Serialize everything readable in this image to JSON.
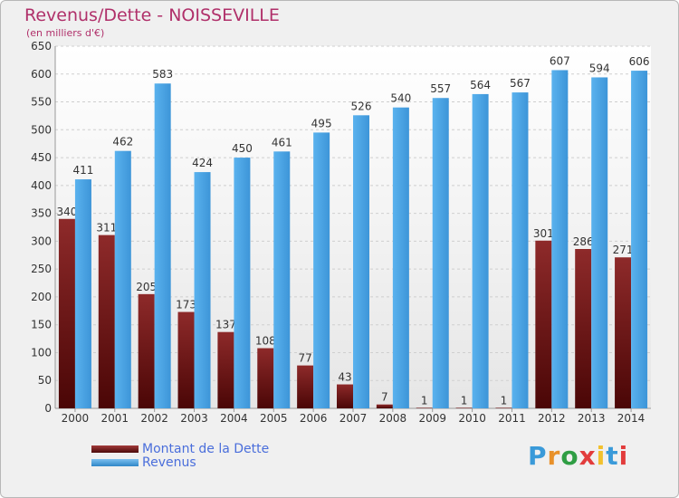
{
  "header": {
    "title": "Revenus/Dette - NOISSEVILLE",
    "subtitle": "(en milliers d'€)"
  },
  "logo": {
    "text": "Proxiti",
    "letters": [
      "P",
      "r",
      "o",
      "x",
      "i",
      "t",
      "i"
    ],
    "colors": [
      "#3a9ad9",
      "#e8912a",
      "#2f9e44",
      "#e23c3c",
      "#f2c12e",
      "#3a9ad9",
      "#e23c3c"
    ]
  },
  "colors": {
    "debt": "#7a1c1c",
    "revenue": "#4aa3e3",
    "grid": "#cfcfcf",
    "axis_text": "#333333"
  },
  "legend": {
    "debt_label": "Montant de la Dette",
    "revenue_label": "Revenus"
  },
  "chart_data": {
    "type": "bar",
    "title": "Revenus/Dette - NOISSEVILLE",
    "subtitle": "(en milliers d'€)",
    "categories": [
      "2000",
      "2001",
      "2002",
      "2003",
      "2004",
      "2005",
      "2006",
      "2007",
      "2008",
      "2009",
      "2010",
      "2011",
      "2012",
      "2013",
      "2014"
    ],
    "series": [
      {
        "name": "Montant de la Dette",
        "values": [
          340,
          311,
          205,
          173,
          137,
          108,
          77,
          43,
          7,
          1,
          1,
          1,
          301,
          286,
          271
        ]
      },
      {
        "name": "Revenus",
        "values": [
          411,
          462,
          583,
          424,
          450,
          461,
          495,
          526,
          540,
          557,
          564,
          567,
          607,
          594,
          606
        ]
      }
    ],
    "ylim": [
      0,
      650
    ],
    "yticks": [
      0,
      50,
      100,
      150,
      200,
      250,
      300,
      350,
      400,
      450,
      500,
      550,
      600,
      650
    ],
    "grid": true,
    "legend_position": "bottom-left",
    "data_labels": true
  }
}
